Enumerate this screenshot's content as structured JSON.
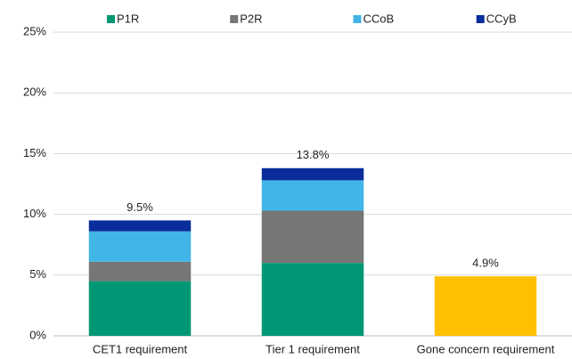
{
  "chart_data": {
    "type": "stacked_bar",
    "categories": [
      "CET1 requirement",
      "Tier 1 requirement",
      "Gone concern requirement"
    ],
    "series": [
      {
        "name": "P1R",
        "color": "#009874",
        "colors": [
          "#009874",
          "#009874",
          "#ffc000"
        ],
        "values": [
          4.5,
          6.0,
          4.9
        ]
      },
      {
        "name": "P2R",
        "color": "#767676",
        "values": [
          1.6,
          4.3,
          null
        ]
      },
      {
        "name": "CCoB",
        "color": "#41b6e6",
        "values": [
          2.5,
          2.5,
          null
        ]
      },
      {
        "name": "CCyB",
        "color": "#0a2d9c",
        "values": [
          0.9,
          1.0,
          null
        ]
      }
    ],
    "total_labels": [
      "9.5%",
      "13.8%",
      "4.9%"
    ],
    "ylim": [
      0,
      25
    ],
    "yticks": [
      {
        "value": 0,
        "label": "0%"
      },
      {
        "value": 5,
        "label": "5%"
      },
      {
        "value": 10,
        "label": "10%"
      },
      {
        "value": 15,
        "label": "15%"
      },
      {
        "value": 20,
        "label": "20%"
      },
      {
        "value": 25,
        "label": "25%"
      }
    ],
    "grid": true,
    "legend": "top"
  }
}
